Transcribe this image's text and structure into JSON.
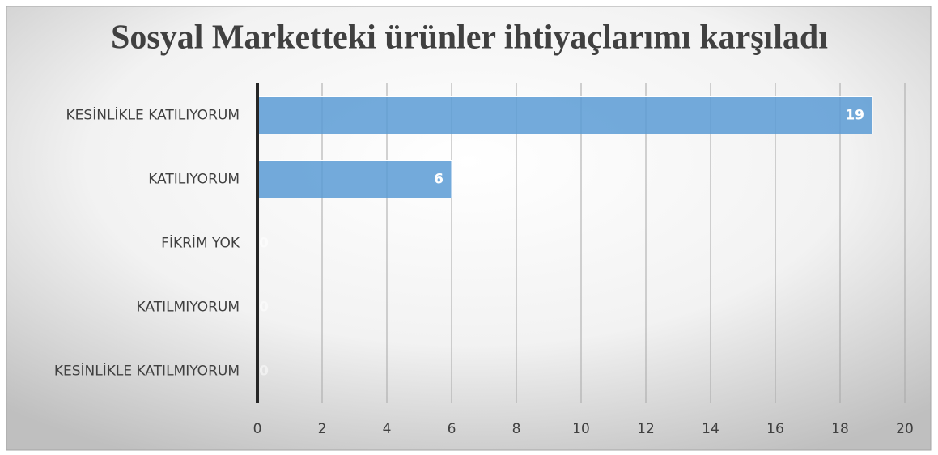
{
  "chart_data": {
    "type": "bar",
    "orientation": "horizontal",
    "title": "Sosyal Marketteki ürünler ihtiyaçlarımı karşıladı",
    "categories": [
      "KESİNLİKLE KATILIYORUM",
      "KATILIYORUM",
      "FİKRİM YOK",
      "KATILMIYORUM",
      "KESİNLİKLE KATILMIYORUM"
    ],
    "values": [
      19,
      6,
      0,
      0,
      0
    ],
    "color": "#5b9bd5",
    "xlim": [
      0,
      20
    ],
    "xticks": [
      0,
      2,
      4,
      6,
      8,
      10,
      12,
      14,
      16,
      18,
      20
    ],
    "grid": true
  }
}
